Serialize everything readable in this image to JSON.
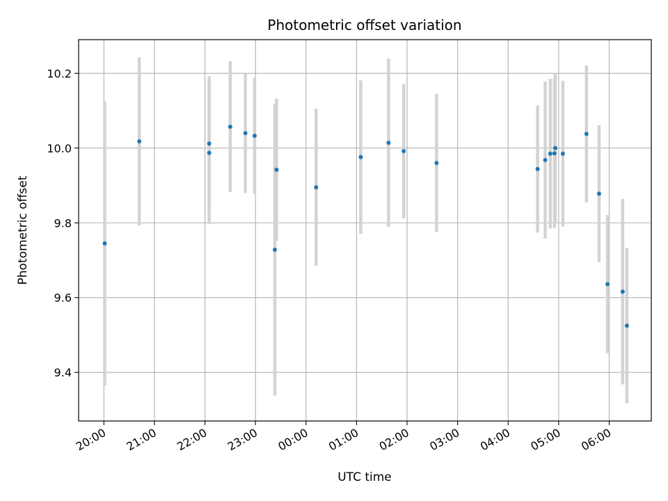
{
  "chart_data": {
    "type": "scatter",
    "title": "Photometric offset variation",
    "xlabel": "UTC time",
    "ylabel": "Photometric offset",
    "x_tick_labels": [
      "20:00",
      "21:00",
      "22:00",
      "23:00",
      "00:00",
      "01:00",
      "02:00",
      "03:00",
      "04:00",
      "05:00",
      "06:00"
    ],
    "y_tick_labels": [
      "9.4",
      "9.6",
      "9.8",
      "10.0",
      "10.2"
    ],
    "y_ticks": [
      9.4,
      9.6,
      9.8,
      10.0,
      10.2
    ],
    "ylim": [
      9.27,
      10.29
    ],
    "xlim": [
      "19:30",
      "06:50"
    ],
    "grid": true,
    "point_color": "#1f77b4",
    "errorbar_color": "#d3d3d3",
    "series": [
      {
        "points": [
          {
            "x": "20:01",
            "y": 9.745,
            "err": 0.38
          },
          {
            "x": "20:42",
            "y": 10.018,
            "err": 0.225
          },
          {
            "x": "22:05",
            "y": 10.012,
            "err": 0.18
          },
          {
            "x": "22:05",
            "y": 9.987,
            "err": 0.19
          },
          {
            "x": "22:30",
            "y": 10.057,
            "err": 0.175
          },
          {
            "x": "22:48",
            "y": 10.04,
            "err": 0.16
          },
          {
            "x": "22:59",
            "y": 10.033,
            "err": 0.155
          },
          {
            "x": "23:23",
            "y": 9.728,
            "err": 0.39
          },
          {
            "x": "23:25",
            "y": 9.942,
            "err": 0.19
          },
          {
            "x": "00:12",
            "y": 9.895,
            "err": 0.21
          },
          {
            "x": "01:05",
            "y": 9.976,
            "err": 0.205
          },
          {
            "x": "01:38",
            "y": 10.014,
            "err": 0.225
          },
          {
            "x": "01:56",
            "y": 9.992,
            "err": 0.18
          },
          {
            "x": "02:35",
            "y": 9.96,
            "err": 0.185
          },
          {
            "x": "04:35",
            "y": 9.944,
            "err": 0.17
          },
          {
            "x": "04:44",
            "y": 9.968,
            "err": 0.21
          },
          {
            "x": "04:50",
            "y": 9.985,
            "err": 0.2
          },
          {
            "x": "04:55",
            "y": 9.986,
            "err": 0.2
          },
          {
            "x": "04:56",
            "y": 10.0,
            "err": 0.2
          },
          {
            "x": "05:05",
            "y": 9.985,
            "err": 0.195
          },
          {
            "x": "05:33",
            "y": 10.038,
            "err": 0.183
          },
          {
            "x": "05:48",
            "y": 9.878,
            "err": 0.183
          },
          {
            "x": "05:58",
            "y": 9.636,
            "err": 0.185
          },
          {
            "x": "06:16",
            "y": 9.616,
            "err": 0.248
          },
          {
            "x": "06:21",
            "y": 9.525,
            "err": 0.208
          }
        ]
      }
    ]
  }
}
